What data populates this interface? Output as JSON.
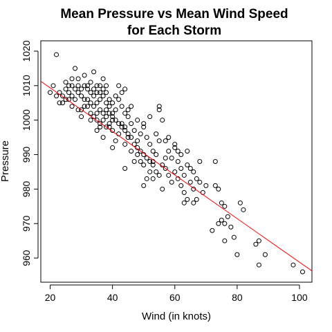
{
  "chart_data": {
    "type": "scatter",
    "title_line1": "Mean Pressure vs Mean Wind Speed",
    "title_line2": "for Each Storm",
    "xlabel": "Wind (in knots)",
    "ylabel": "Pressure",
    "xlim": [
      17,
      104
    ],
    "ylim": [
      953,
      1023
    ],
    "x_ticks": [
      "20",
      "40",
      "60",
      "80",
      "100"
    ],
    "y_ticks": [
      "960",
      "970",
      "980",
      "990",
      "1000",
      "1010",
      "1020"
    ],
    "point_color": "#000000",
    "fit_line": {
      "intercept": 1022.0,
      "slope": -0.632,
      "color": "#ff0000"
    },
    "grid": false,
    "legend": "none",
    "points": [
      [
        22,
        1019
      ],
      [
        20,
        1008
      ],
      [
        21,
        1010
      ],
      [
        23,
        1008
      ],
      [
        24,
        1005
      ],
      [
        25,
        1011
      ],
      [
        26,
        1006
      ],
      [
        27,
        1004
      ],
      [
        25,
        1009
      ],
      [
        28,
        1015
      ],
      [
        27,
        1010
      ],
      [
        29,
        1012
      ],
      [
        30,
        1009
      ],
      [
        31,
        1013
      ],
      [
        29,
        1003
      ],
      [
        30,
        1001
      ],
      [
        32,
        1010
      ],
      [
        33,
        1011
      ],
      [
        34,
        1014
      ],
      [
        32,
        1006
      ],
      [
        33,
        1000
      ],
      [
        35,
        1002
      ],
      [
        34,
        1004
      ],
      [
        36,
        1006
      ],
      [
        35,
        1008
      ],
      [
        36,
        1010
      ],
      [
        37,
        1012
      ],
      [
        38,
        1010
      ],
      [
        37,
        1007
      ],
      [
        38,
        1005
      ],
      [
        39,
        1004
      ],
      [
        40,
        1002
      ],
      [
        38,
        1001
      ],
      [
        36,
        999
      ],
      [
        35,
        997
      ],
      [
        37,
        995
      ],
      [
        39,
        998
      ],
      [
        40,
        1000
      ],
      [
        41,
        1003
      ],
      [
        42,
        1006
      ],
      [
        43,
        1004
      ],
      [
        44,
        1002
      ],
      [
        43,
        999
      ],
      [
        42,
        996
      ],
      [
        41,
        994
      ],
      [
        40,
        992
      ],
      [
        44,
        998
      ],
      [
        45,
        1001
      ],
      [
        46,
        999
      ],
      [
        47,
        997
      ],
      [
        45,
        995
      ],
      [
        44,
        993
      ],
      [
        46,
        991
      ],
      [
        48,
        994
      ],
      [
        49,
        996
      ],
      [
        50,
        998
      ],
      [
        51,
        995
      ],
      [
        52,
        993
      ],
      [
        53,
        991
      ],
      [
        54,
        996
      ],
      [
        55,
        1004
      ],
      [
        56,
        1000
      ],
      [
        55,
        994
      ],
      [
        54,
        990
      ],
      [
        53,
        988
      ],
      [
        52,
        985
      ],
      [
        51,
        983
      ],
      [
        50,
        987
      ],
      [
        49,
        988
      ],
      [
        48,
        992
      ],
      [
        57,
        994
      ],
      [
        58,
        991
      ],
      [
        59,
        989
      ],
      [
        60,
        992
      ],
      [
        61,
        988
      ],
      [
        62,
        986
      ],
      [
        63,
        984
      ],
      [
        64,
        987
      ],
      [
        65,
        982
      ],
      [
        66,
        980
      ],
      [
        57,
        986
      ],
      [
        58,
        984
      ],
      [
        59,
        982
      ],
      [
        60,
        985
      ],
      [
        61,
        983
      ],
      [
        62,
        981
      ],
      [
        63,
        979
      ],
      [
        64,
        977
      ],
      [
        66,
        976
      ],
      [
        67,
        983
      ],
      [
        68,
        988
      ],
      [
        63,
        976
      ],
      [
        44,
        986
      ],
      [
        47,
        988
      ],
      [
        50,
        981
      ],
      [
        53,
        983
      ],
      [
        72,
        968
      ],
      [
        73,
        981
      ],
      [
        74,
        980
      ],
      [
        73,
        988
      ],
      [
        75,
        976
      ],
      [
        76,
        975
      ],
      [
        77,
        972
      ],
      [
        76,
        970
      ],
      [
        75,
        971
      ],
      [
        78,
        969
      ],
      [
        79,
        966
      ],
      [
        80,
        961
      ],
      [
        81,
        976
      ],
      [
        82,
        974
      ],
      [
        74,
        970
      ],
      [
        76,
        965
      ],
      [
        86,
        964
      ],
      [
        87,
        965
      ],
      [
        87,
        958
      ],
      [
        89,
        961
      ],
      [
        98,
        958
      ],
      [
        101,
        956
      ],
      [
        26,
        1008
      ],
      [
        27,
        1007
      ],
      [
        28,
        1006
      ],
      [
        29,
        1008
      ],
      [
        30,
        1007
      ],
      [
        31,
        1006
      ],
      [
        32,
        1004
      ],
      [
        33,
        1005
      ],
      [
        34,
        1007
      ],
      [
        35,
        1005
      ],
      [
        36,
        1003
      ],
      [
        37,
        1002
      ],
      [
        38,
        1003
      ],
      [
        39,
        1002
      ],
      [
        40,
        1001
      ],
      [
        41,
        1000
      ],
      [
        42,
        999
      ],
      [
        43,
        998
      ],
      [
        44,
        997
      ],
      [
        45,
        996
      ],
      [
        46,
        995
      ],
      [
        47,
        993
      ],
      [
        48,
        990
      ],
      [
        49,
        991
      ],
      [
        50,
        990
      ],
      [
        51,
        989
      ],
      [
        52,
        988
      ],
      [
        53,
        987
      ],
      [
        54,
        985
      ],
      [
        55,
        984
      ],
      [
        56,
        987
      ],
      [
        57,
        989
      ],
      [
        30,
        1003
      ],
      [
        31,
        1004
      ],
      [
        33,
        1002
      ],
      [
        34,
        1001
      ],
      [
        35,
        1000
      ],
      [
        36,
        998
      ],
      [
        37,
        1000
      ],
      [
        38,
        998
      ],
      [
        39,
        999
      ],
      [
        40,
        997
      ],
      [
        28,
        1009
      ],
      [
        29,
        1010
      ],
      [
        31,
        1010
      ],
      [
        32,
        1009
      ],
      [
        33,
        1008
      ],
      [
        34,
        1009
      ],
      [
        35,
        1010
      ],
      [
        36,
        1008
      ],
      [
        37,
        1009
      ],
      [
        38,
        1008
      ],
      [
        24,
        1007
      ],
      [
        25,
        1006
      ],
      [
        26,
        1010
      ],
      [
        27,
        1012
      ],
      [
        22,
        1007
      ],
      [
        23,
        1005
      ],
      [
        62,
        990
      ],
      [
        64,
        991
      ],
      [
        66,
        985
      ],
      [
        68,
        982
      ],
      [
        70,
        981
      ],
      [
        67,
        977
      ],
      [
        69,
        979
      ],
      [
        45,
        1003
      ],
      [
        46,
        1004
      ],
      [
        48,
        1000
      ],
      [
        50,
        999
      ],
      [
        52,
        1001
      ],
      [
        43,
        1008
      ],
      [
        41,
        1007
      ],
      [
        39,
        1006
      ],
      [
        42,
        1010
      ],
      [
        44,
        1009
      ],
      [
        40,
        1005
      ],
      [
        55,
        1003
      ],
      [
        58,
        995
      ],
      [
        60,
        993
      ],
      [
        61,
        991
      ],
      [
        65,
        986
      ],
      [
        56,
        980
      ]
    ]
  }
}
